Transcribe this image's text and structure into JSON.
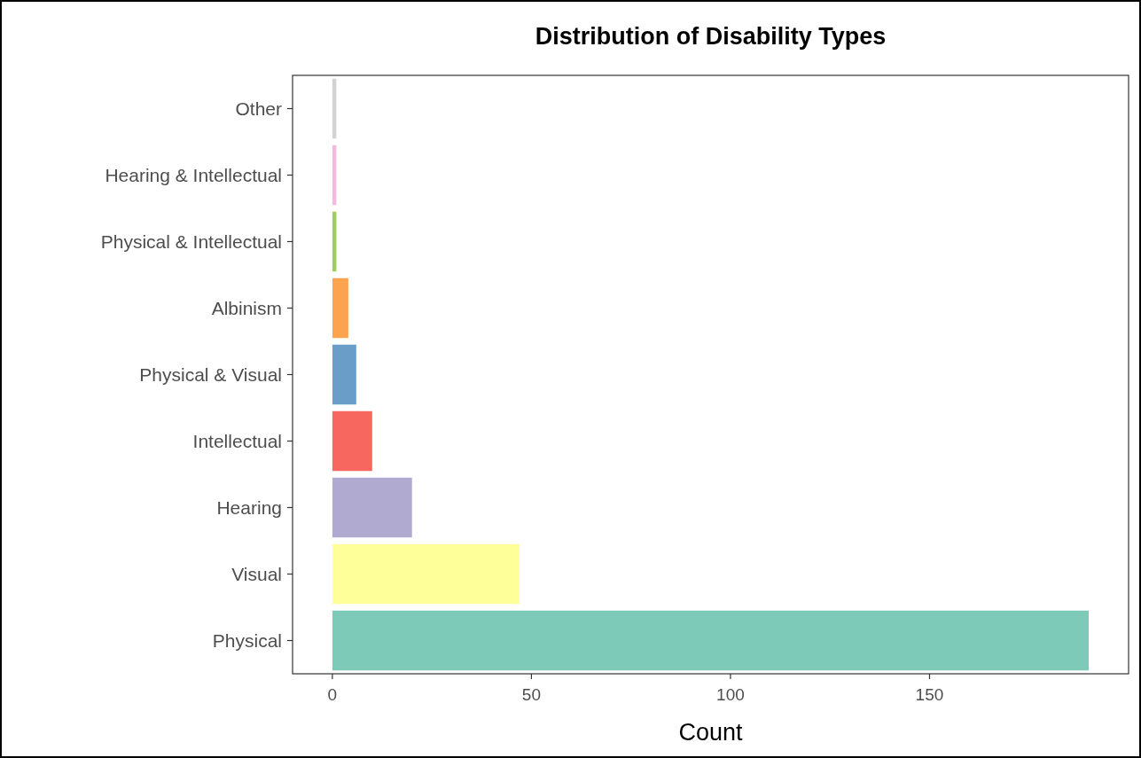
{
  "chart_data": {
    "type": "bar",
    "orientation": "horizontal",
    "title": "Distribution of Disability Types",
    "xlabel": "Count",
    "categories": [
      "Other",
      "Hearing & Intellectual",
      "Physical & Intellectual",
      "Albinism",
      "Physical & Visual",
      "Intellectual",
      "Hearing",
      "Visual",
      "Physical"
    ],
    "values": [
      1,
      1,
      1,
      4,
      6,
      10,
      20,
      47,
      190
    ],
    "colors": [
      "#d3d3d3",
      "#f6b8dc",
      "#9dd05a",
      "#fca34f",
      "#6a9ec8",
      "#f8675f",
      "#b0a9d0",
      "#ffff99",
      "#7ecab9"
    ],
    "xlim": [
      -10,
      200
    ],
    "xticks": [
      0,
      50,
      100,
      150
    ],
    "grid": false
  }
}
